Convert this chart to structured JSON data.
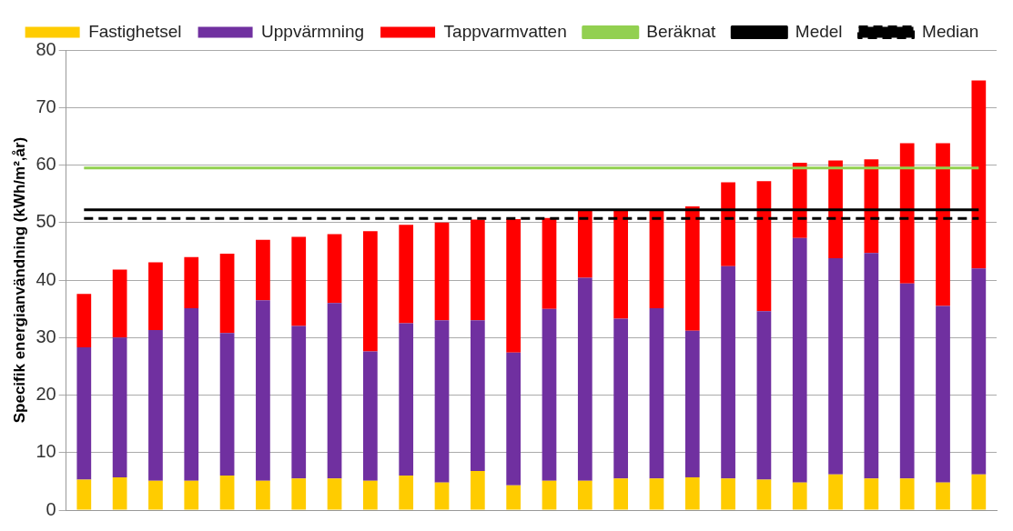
{
  "chart_data": {
    "type": "bar",
    "stacked": true,
    "ylabel": "Specifik energianvändning (kWh/m²,år)",
    "categories": [
      null,
      null,
      null,
      null,
      null,
      null,
      null,
      null,
      null,
      null,
      null,
      null,
      null,
      null,
      null,
      null,
      null,
      null,
      null,
      null,
      null,
      null,
      null,
      null,
      null,
      null
    ],
    "series": [
      {
        "name": "Fastighetsel",
        "color": "#ffcc00",
        "values": [
          5.3,
          5.7,
          5.1,
          5.1,
          6.0,
          5.1,
          5.5,
          5.5,
          5.1,
          6.0,
          4.8,
          6.8,
          4.3,
          5.1,
          5.1,
          5.5,
          5.5,
          5.7,
          5.5,
          5.3,
          4.8,
          6.2,
          5.5,
          5.5,
          4.8,
          6.2
        ]
      },
      {
        "name": "Uppvärmning",
        "color": "#7030a0",
        "values": [
          23.0,
          24.3,
          26.2,
          30.0,
          24.8,
          31.4,
          26.5,
          30.5,
          22.5,
          26.5,
          28.2,
          26.2,
          23.1,
          29.9,
          35.3,
          27.8,
          29.6,
          25.5,
          36.9,
          29.3,
          42.5,
          37.6,
          39.2,
          33.9,
          30.7,
          35.8
        ]
      },
      {
        "name": "Tappvarmvatten",
        "color": "#ff0000",
        "values": [
          9.3,
          11.8,
          11.8,
          8.9,
          13.8,
          10.5,
          15.5,
          12.0,
          20.9,
          17.1,
          17.0,
          17.5,
          23.2,
          15.8,
          11.6,
          18.7,
          16.9,
          21.6,
          14.6,
          22.6,
          13.1,
          17.0,
          16.3,
          24.4,
          28.3,
          32.7
        ]
      },
      {
        "name": "Beräknat",
        "type": "line",
        "color": "#92d050",
        "line_style": "solid",
        "values": [
          59.5,
          59.5,
          59.5,
          59.5,
          59.5,
          59.5,
          59.5,
          59.5,
          59.5,
          59.5,
          59.5,
          59.5,
          59.5,
          59.5,
          59.5,
          59.5,
          59.5,
          59.5,
          59.5,
          59.5,
          59.5,
          59.5,
          59.5,
          59.5,
          59.5,
          59.5
        ]
      },
      {
        "name": "Medel",
        "type": "line",
        "color": "#000000",
        "line_style": "solid",
        "values": [
          52.2,
          52.2,
          52.2,
          52.2,
          52.2,
          52.2,
          52.2,
          52.2,
          52.2,
          52.2,
          52.2,
          52.2,
          52.2,
          52.2,
          52.2,
          52.2,
          52.2,
          52.2,
          52.2,
          52.2,
          52.2,
          52.2,
          52.2,
          52.2,
          52.2,
          52.2
        ]
      },
      {
        "name": "Median",
        "type": "line",
        "color": "#000000",
        "line_style": "dashed",
        "values": [
          50.7,
          50.7,
          50.7,
          50.7,
          50.7,
          50.7,
          50.7,
          50.7,
          50.7,
          50.7,
          50.7,
          50.7,
          50.7,
          50.7,
          50.7,
          50.7,
          50.7,
          50.7,
          50.7,
          50.7,
          50.7,
          50.7,
          50.7,
          50.7,
          50.7,
          50.7
        ]
      }
    ],
    "ylim": [
      0,
      80
    ],
    "yticks": [
      0,
      10,
      20,
      30,
      40,
      50,
      60,
      70,
      80
    ],
    "grid": "y",
    "legend": "top",
    "marker": "none",
    "tick_labels": "y"
  }
}
